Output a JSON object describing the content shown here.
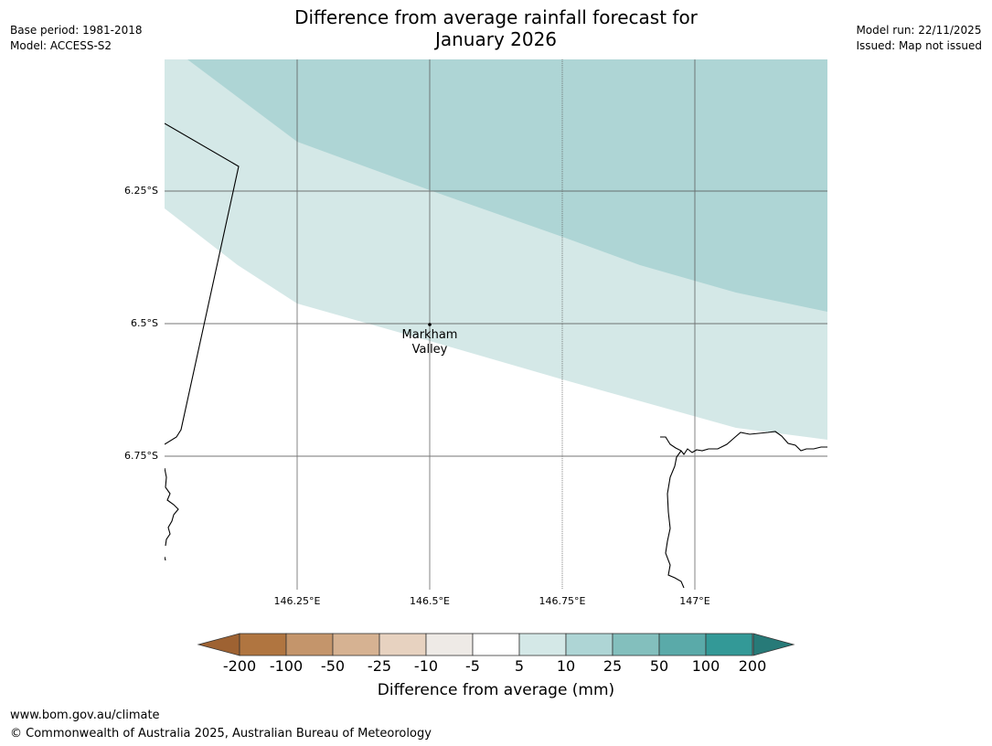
{
  "header": {
    "title_line1": "Difference from average rainfall forecast for",
    "title_line2": "January 2026",
    "base_period": "Base period: 1981-2018",
    "model": "Model: ACCESS-S2",
    "model_run": "Model run: 22/11/2025",
    "issued": "Issued: Map not issued"
  },
  "map": {
    "lat_labels": [
      "6.25°S",
      "6.5°S",
      "6.75°S"
    ],
    "lon_labels": [
      "146.25°E",
      "146.5°E",
      "146.75°E",
      "147°E"
    ],
    "place": {
      "name_line1": "Markham",
      "name_line2": "Valley"
    },
    "zone_colors": {
      "band_5_10": "#d4e8e7",
      "band_10_25": "#aed5d5"
    }
  },
  "legend": {
    "title": "Difference from average (mm)",
    "tick_labels": [
      "-200",
      "-100",
      "-50",
      "-25",
      "-10",
      "-5",
      "5",
      "10",
      "25",
      "50",
      "100",
      "200"
    ],
    "colors": [
      "#9e6232",
      "#b07540",
      "#c4956b",
      "#d6b292",
      "#e7d2c0",
      "#eeeae6",
      "#ffffff",
      "#d4e8e7",
      "#aed5d5",
      "#83bfbd",
      "#5aaaa9",
      "#339997",
      "#277a78"
    ]
  },
  "footer": {
    "url": "www.bom.gov.au/climate",
    "copyright": "© Commonwealth of Australia 2025, Australian Bureau of Meteorology"
  }
}
